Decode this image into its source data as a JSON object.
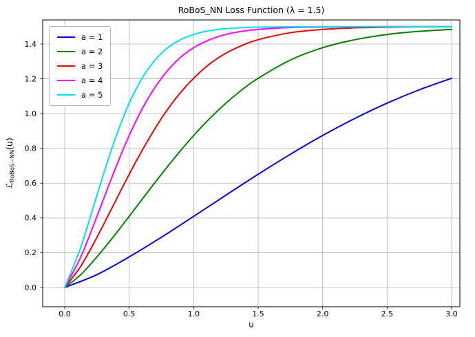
{
  "figure": {
    "title": "RoBoS_NN Loss Function (λ = 1.5)",
    "xlabel": "u",
    "ylabel": {
      "prefix": "ℒ",
      "sub": "RoBoS−NN",
      "suffix": "(u)"
    }
  },
  "chart_data": {
    "type": "line",
    "title": "RoBoS_NN Loss Function (λ = 1.5)",
    "xlabel": "u",
    "ylabel": "L_RoBoS−NN(u)",
    "lambda": 1.5,
    "xlim": [
      -0.17,
      3.06
    ],
    "ylim": [
      -0.11,
      1.54
    ],
    "grid": true,
    "legend_position": "upper left",
    "x_tick_values": [
      0,
      0.5,
      1,
      1.5,
      2,
      2.5,
      3
    ],
    "x_tick_labels": [
      "0.0",
      "0.5",
      "1.0",
      "1.5",
      "2.0",
      "2.5",
      "3.0"
    ],
    "y_tick_values": [
      0,
      0.2,
      0.4,
      0.6,
      0.8,
      1.0,
      1.2,
      1.4
    ],
    "y_tick_labels": [
      "0.0",
      "0.2",
      "0.4",
      "0.6",
      "0.8",
      "1.0",
      "1.2",
      "1.4"
    ],
    "series": [
      {
        "name": "a = 1",
        "color": "#0000dc",
        "points": [
          [
            0,
            0
          ],
          [
            0.25,
            0.074
          ],
          [
            0.5,
            0.176
          ],
          [
            0.75,
            0.289
          ],
          [
            1,
            0.409
          ],
          [
            1.25,
            0.531
          ],
          [
            1.5,
            0.651
          ],
          [
            1.75,
            0.766
          ],
          [
            2,
            0.874
          ],
          [
            2.25,
            0.972
          ],
          [
            2.5,
            1.06
          ],
          [
            2.75,
            1.137
          ],
          [
            3,
            1.203
          ]
        ]
      },
      {
        "name": "a = 2",
        "color": "#008000",
        "points": [
          [
            0,
            0
          ],
          [
            0.125,
            0.074
          ],
          [
            0.25,
            0.176
          ],
          [
            0.375,
            0.289
          ],
          [
            0.5,
            0.409
          ],
          [
            0.625,
            0.531
          ],
          [
            0.75,
            0.651
          ],
          [
            0.875,
            0.766
          ],
          [
            1,
            0.874
          ],
          [
            1.125,
            0.972
          ],
          [
            1.25,
            1.06
          ],
          [
            1.375,
            1.137
          ],
          [
            1.5,
            1.203
          ],
          [
            1.75,
            1.308
          ],
          [
            2,
            1.379
          ],
          [
            2.25,
            1.425
          ],
          [
            2.5,
            1.455
          ],
          [
            2.75,
            1.473
          ],
          [
            3,
            1.484
          ]
        ]
      },
      {
        "name": "a = 3",
        "color": "#ee0000",
        "points": [
          [
            0,
            0
          ],
          [
            0.125,
            0.123
          ],
          [
            0.25,
            0.289
          ],
          [
            0.375,
            0.47
          ],
          [
            0.5,
            0.651
          ],
          [
            0.625,
            0.82
          ],
          [
            0.75,
            0.972
          ],
          [
            0.875,
            1.1
          ],
          [
            1,
            1.203
          ],
          [
            1.125,
            1.286
          ],
          [
            1.25,
            1.347
          ],
          [
            1.375,
            1.392
          ],
          [
            1.5,
            1.425
          ],
          [
            1.75,
            1.465
          ],
          [
            2,
            1.484
          ],
          [
            2.25,
            1.493
          ],
          [
            2.5,
            1.497
          ],
          [
            2.75,
            1.499
          ],
          [
            3,
            1.5
          ]
        ]
      },
      {
        "name": "a = 4",
        "color": "#ff00ff",
        "points": [
          [
            0,
            0
          ],
          [
            0.125,
            0.176
          ],
          [
            0.25,
            0.409
          ],
          [
            0.375,
            0.651
          ],
          [
            0.5,
            0.874
          ],
          [
            0.625,
            1.06
          ],
          [
            0.75,
            1.203
          ],
          [
            0.875,
            1.308
          ],
          [
            1,
            1.379
          ],
          [
            1.125,
            1.425
          ],
          [
            1.25,
            1.455
          ],
          [
            1.375,
            1.473
          ],
          [
            1.5,
            1.484
          ],
          [
            1.75,
            1.495
          ],
          [
            2,
            1.498
          ],
          [
            2.25,
            1.499
          ],
          [
            2.5,
            1.5
          ],
          [
            2.75,
            1.5
          ],
          [
            3,
            1.5
          ]
        ]
      },
      {
        "name": "a = 5",
        "color": "#00e0ee",
        "points": [
          [
            0,
            0
          ],
          [
            0.125,
            0.232
          ],
          [
            0.25,
            0.531
          ],
          [
            0.375,
            0.82
          ],
          [
            0.5,
            1.06
          ],
          [
            0.625,
            1.233
          ],
          [
            0.75,
            1.347
          ],
          [
            0.875,
            1.416
          ],
          [
            1,
            1.455
          ],
          [
            1.125,
            1.477
          ],
          [
            1.25,
            1.488
          ],
          [
            1.375,
            1.494
          ],
          [
            1.5,
            1.497
          ],
          [
            1.75,
            1.499
          ],
          [
            2,
            1.5
          ],
          [
            2.25,
            1.5
          ],
          [
            2.5,
            1.5
          ],
          [
            2.75,
            1.5
          ],
          [
            3,
            1.5
          ]
        ]
      }
    ],
    "style": {
      "grid_color": "#b0b0b0",
      "spine_color": "#000000",
      "line_width": 2
    }
  }
}
